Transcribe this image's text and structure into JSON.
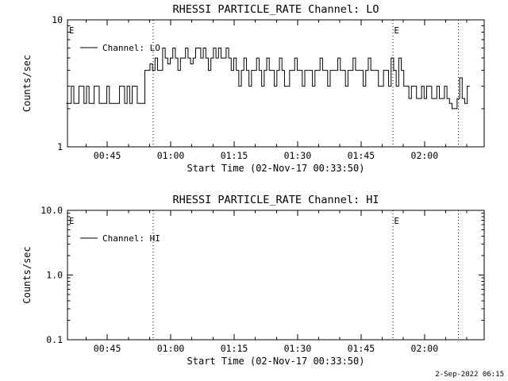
{
  "timestamp": "2-Sep-2022 06:15",
  "chart_data": [
    {
      "type": "line",
      "title": "RHESSI PARTICLE_RATE Channel: LO",
      "xlabel": "Start Time (02-Nov-17 00:33:50)",
      "ylabel": "Counts/sec",
      "legend_label": "Channel: LO",
      "yscale": "log",
      "ylim": [
        1,
        10
      ],
      "yticks": [
        {
          "v": 1,
          "label": "1"
        },
        {
          "v": 10,
          "label": "10"
        }
      ],
      "xlim_minutes": [
        35.6,
        134.1
      ],
      "xticks": [
        {
          "t": 45,
          "label": "00:45"
        },
        {
          "t": 60,
          "label": "01:00"
        },
        {
          "t": 75,
          "label": "01:15"
        },
        {
          "t": 90,
          "label": "01:30"
        },
        {
          "t": 105,
          "label": "01:45"
        },
        {
          "t": 120,
          "label": "02:00"
        }
      ],
      "xminor_step_minutes": 5,
      "event_lines_minutes": [
        55.9,
        112.5,
        128.0
      ],
      "event_flags": [
        {
          "t": 36.6,
          "label": "E"
        },
        {
          "t": 113.4,
          "label": "E"
        }
      ],
      "series": {
        "name": "Channel: LO",
        "t_start_minutes": 35.6,
        "dt_minutes": 0.6,
        "values": [
          2.2,
          2.2,
          3,
          2.2,
          2.2,
          3,
          3,
          2.2,
          3,
          2.2,
          2.2,
          3,
          3,
          2.2,
          2.2,
          2.2,
          3,
          2.2,
          2.2,
          2.2,
          2.2,
          3,
          3,
          2.2,
          3,
          2.2,
          3,
          3,
          2.2,
          2.2,
          2.2,
          4,
          4,
          4.5,
          4,
          5,
          4,
          4,
          6,
          5,
          4.5,
          5,
          6,
          5,
          4,
          5,
          5,
          6,
          5,
          4.5,
          5,
          6,
          6,
          5,
          6,
          5,
          4,
          5,
          6,
          5,
          6,
          5,
          5,
          6,
          5,
          4,
          5,
          4,
          3,
          4,
          5,
          4,
          3,
          4,
          4,
          5,
          4,
          3,
          4,
          5,
          4,
          4,
          3,
          4,
          5,
          4,
          3,
          3,
          4,
          4,
          5,
          4,
          4,
          3,
          4,
          4,
          4,
          3,
          4,
          4,
          5,
          4,
          4,
          3,
          4,
          4,
          4,
          5,
          4,
          4,
          3,
          4,
          4,
          5,
          4,
          4,
          4,
          3,
          4,
          5,
          4,
          4,
          4,
          3,
          3,
          4,
          4,
          3,
          5,
          4,
          3,
          5,
          4,
          3,
          3,
          2.4,
          3,
          3,
          2.4,
          2.4,
          3,
          2.4,
          3,
          3,
          2.4,
          2.4,
          3,
          2.4,
          2.4,
          3,
          2.4,
          2.2,
          2,
          2,
          2.4,
          3.5,
          2.4,
          2.2,
          3
        ]
      }
    },
    {
      "type": "line",
      "title": "RHESSI PARTICLE_RATE Channel: HI",
      "xlabel": "Start Time (02-Nov-17 00:33:50)",
      "ylabel": "Counts/sec",
      "legend_label": "Channel: HI",
      "yscale": "log",
      "ylim": [
        0.1,
        10
      ],
      "yticks": [
        {
          "v": 0.1,
          "label": "0.1"
        },
        {
          "v": 1,
          "label": "1.0"
        },
        {
          "v": 10,
          "label": "10.0"
        }
      ],
      "xlim_minutes": [
        35.6,
        134.1
      ],
      "xticks": [
        {
          "t": 45,
          "label": "00:45"
        },
        {
          "t": 60,
          "label": "01:00"
        },
        {
          "t": 75,
          "label": "01:15"
        },
        {
          "t": 90,
          "label": "01:30"
        },
        {
          "t": 105,
          "label": "01:45"
        },
        {
          "t": 120,
          "label": "02:00"
        }
      ],
      "xminor_step_minutes": 5,
      "event_lines_minutes": [
        55.9,
        112.5,
        128.0
      ],
      "event_flags": [
        {
          "t": 36.6,
          "label": "E"
        },
        {
          "t": 113.4,
          "label": "E"
        }
      ],
      "series": {
        "name": "Channel: HI",
        "t_start_minutes": 35.6,
        "dt_minutes": 0.6,
        "values": []
      }
    }
  ]
}
